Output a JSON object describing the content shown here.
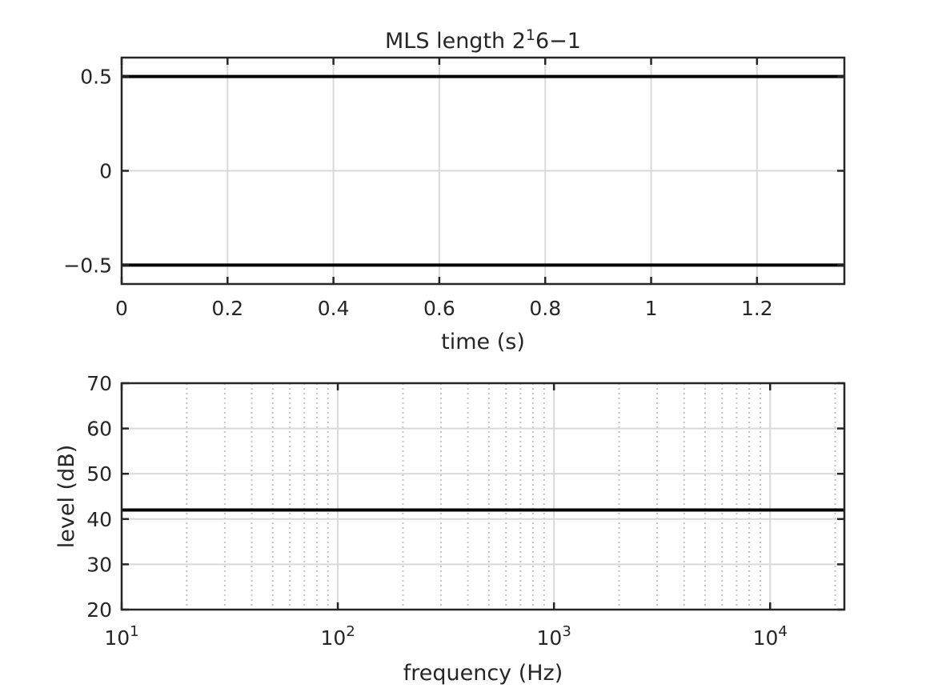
{
  "chart_data": [
    {
      "type": "line",
      "title": {
        "base": "MLS length 2",
        "superscript": "1",
        "rest": "6−1"
      },
      "xlabel": "time (s)",
      "ylabel": "",
      "xlim": [
        0,
        1.365
      ],
      "ylim": [
        -0.6,
        0.6
      ],
      "x_scale": "linear",
      "grid": true,
      "x_ticks": [
        0,
        0.2,
        0.4,
        0.6,
        0.8,
        1,
        1.2
      ],
      "x_tick_labels": [
        "0",
        "0.2",
        "0.4",
        "0.6",
        "0.8",
        "1",
        "1.2"
      ],
      "y_ticks": [
        -0.5,
        0,
        0.5
      ],
      "y_tick_labels": [
        "−0.5",
        "0",
        "0.5"
      ],
      "series": [
        {
          "x": [
            0,
            1.365
          ],
          "y": [
            0.5,
            0.5
          ],
          "color": "#000000"
        },
        {
          "x": [
            0,
            1.365
          ],
          "y": [
            -0.5,
            -0.5
          ],
          "color": "#000000"
        }
      ]
    },
    {
      "type": "line",
      "title": "",
      "xlabel": "frequency (Hz)",
      "ylabel": "level (dB)",
      "xlim": [
        10,
        22050
      ],
      "ylim": [
        20,
        70
      ],
      "x_scale": "log",
      "grid": true,
      "x_ticks": [
        10,
        100,
        1000,
        10000
      ],
      "x_tick_labels": [
        {
          "base": "10",
          "exp": "1"
        },
        {
          "base": "10",
          "exp": "2"
        },
        {
          "base": "10",
          "exp": "3"
        },
        {
          "base": "10",
          "exp": "4"
        }
      ],
      "y_ticks": [
        20,
        30,
        40,
        50,
        60,
        70
      ],
      "y_tick_labels": [
        "20",
        "30",
        "40",
        "50",
        "60",
        "70"
      ],
      "series": [
        {
          "x": [
            10,
            22050
          ],
          "y": [
            42,
            42
          ],
          "color": "#000000"
        }
      ]
    }
  ]
}
